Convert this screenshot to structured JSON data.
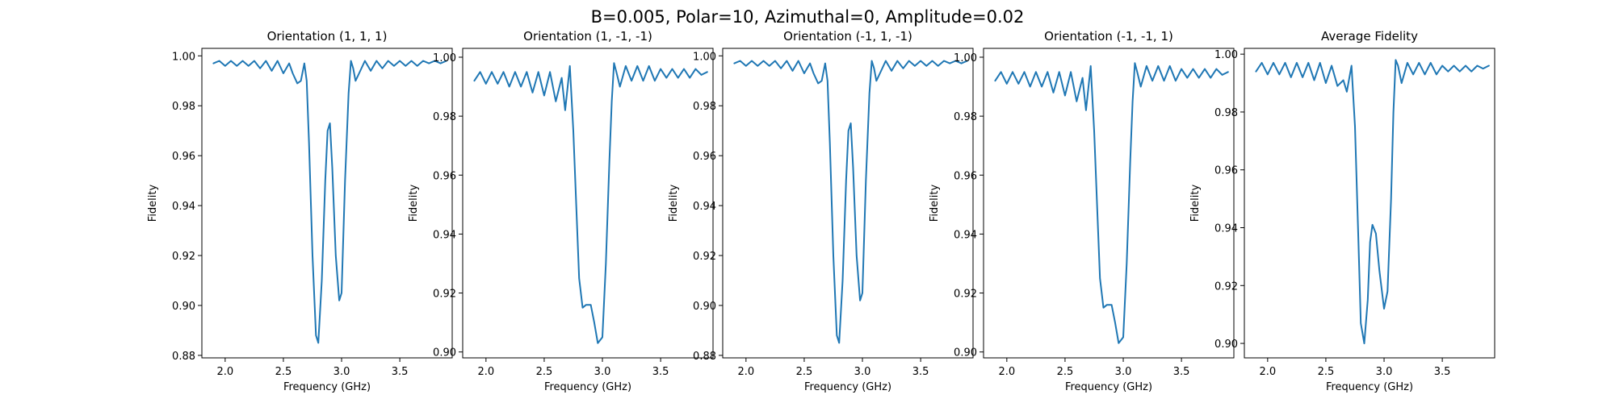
{
  "suptitle": "B=0.005, Polar=10, Azimuthal=0, Amplitude=0.02",
  "line_color": "#1f77b4",
  "chart_data": [
    {
      "type": "line",
      "title": "Orientation (1, 1, 1)",
      "xlabel": "Frequency (GHz)",
      "ylabel": "Fidelity",
      "xlim": [
        1.8,
        3.95
      ],
      "ylim": [
        0.879,
        1.003
      ],
      "xticks": [
        2.0,
        2.5,
        3.0,
        3.5
      ],
      "xtick_labels": [
        "2.0",
        "2.5",
        "3.0",
        "3.5"
      ],
      "yticks": [
        0.88,
        0.9,
        0.92,
        0.94,
        0.96,
        0.98,
        1.0
      ],
      "ytick_labels": [
        "0.88",
        "0.90",
        "0.92",
        "0.94",
        "0.96",
        "0.98",
        "1.00"
      ],
      "grid": false,
      "series": [
        {
          "x": [
            1.9,
            1.95,
            2.0,
            2.05,
            2.1,
            2.15,
            2.2,
            2.25,
            2.3,
            2.35,
            2.4,
            2.45,
            2.5,
            2.55,
            2.58,
            2.62,
            2.65,
            2.68,
            2.7,
            2.72,
            2.75,
            2.78,
            2.8,
            2.83,
            2.86,
            2.88,
            2.9,
            2.92,
            2.95,
            2.98,
            3.0,
            3.03,
            3.06,
            3.08,
            3.1,
            3.12,
            3.15,
            3.2,
            3.25,
            3.3,
            3.35,
            3.4,
            3.45,
            3.5,
            3.55,
            3.6,
            3.65,
            3.7,
            3.75,
            3.8,
            3.85,
            3.9
          ],
          "y": [
            0.997,
            0.998,
            0.996,
            0.998,
            0.996,
            0.998,
            0.996,
            0.998,
            0.995,
            0.998,
            0.994,
            0.998,
            0.993,
            0.997,
            0.993,
            0.989,
            0.99,
            0.997,
            0.99,
            0.965,
            0.92,
            0.888,
            0.885,
            0.91,
            0.95,
            0.97,
            0.973,
            0.955,
            0.92,
            0.902,
            0.905,
            0.95,
            0.985,
            0.998,
            0.995,
            0.99,
            0.993,
            0.998,
            0.994,
            0.998,
            0.995,
            0.998,
            0.996,
            0.998,
            0.996,
            0.998,
            0.996,
            0.998,
            0.997,
            0.998,
            0.997,
            0.998
          ]
        }
      ]
    },
    {
      "type": "line",
      "title": "Orientation (1, -1, -1)",
      "xlabel": "Frequency (GHz)",
      "ylabel": "Fidelity",
      "xlim": [
        1.8,
        3.95
      ],
      "ylim": [
        0.898,
        1.003
      ],
      "xticks": [
        2.0,
        2.5,
        3.0,
        3.5
      ],
      "xtick_labels": [
        "2.0",
        "2.5",
        "3.0",
        "3.5"
      ],
      "yticks": [
        0.9,
        0.92,
        0.94,
        0.96,
        0.98,
        1.0
      ],
      "ytick_labels": [
        "0.90",
        "0.92",
        "0.94",
        "0.96",
        "0.98",
        "1.00"
      ],
      "grid": false,
      "series": [
        {
          "x": [
            1.9,
            1.95,
            2.0,
            2.05,
            2.1,
            2.15,
            2.2,
            2.25,
            2.3,
            2.35,
            2.4,
            2.45,
            2.5,
            2.55,
            2.6,
            2.65,
            2.68,
            2.72,
            2.75,
            2.78,
            2.8,
            2.83,
            2.86,
            2.9,
            2.93,
            2.96,
            3.0,
            3.03,
            3.06,
            3.08,
            3.1,
            3.12,
            3.15,
            3.2,
            3.25,
            3.3,
            3.35,
            3.4,
            3.45,
            3.5,
            3.55,
            3.6,
            3.65,
            3.7,
            3.75,
            3.8,
            3.85,
            3.9
          ],
          "y": [
            0.992,
            0.995,
            0.991,
            0.995,
            0.991,
            0.995,
            0.99,
            0.995,
            0.99,
            0.995,
            0.988,
            0.995,
            0.987,
            0.995,
            0.985,
            0.993,
            0.982,
            0.997,
            0.975,
            0.945,
            0.925,
            0.915,
            0.916,
            0.916,
            0.91,
            0.903,
            0.905,
            0.93,
            0.965,
            0.985,
            0.998,
            0.995,
            0.99,
            0.997,
            0.992,
            0.997,
            0.992,
            0.997,
            0.992,
            0.996,
            0.993,
            0.996,
            0.993,
            0.996,
            0.993,
            0.996,
            0.994,
            0.995
          ]
        }
      ]
    },
    {
      "type": "line",
      "title": "Orientation (-1, 1, -1)",
      "xlabel": "Frequency (GHz)",
      "ylabel": "Fidelity",
      "xlim": [
        1.8,
        3.95
      ],
      "ylim": [
        0.879,
        1.003
      ],
      "xticks": [
        2.0,
        2.5,
        3.0,
        3.5
      ],
      "xtick_labels": [
        "2.0",
        "2.5",
        "3.0",
        "3.5"
      ],
      "yticks": [
        0.88,
        0.9,
        0.92,
        0.94,
        0.96,
        0.98,
        1.0
      ],
      "ytick_labels": [
        "0.88",
        "0.90",
        "0.92",
        "0.94",
        "0.96",
        "0.98",
        "1.00"
      ],
      "grid": false,
      "series": [
        {
          "x": [
            1.9,
            1.95,
            2.0,
            2.05,
            2.1,
            2.15,
            2.2,
            2.25,
            2.3,
            2.35,
            2.4,
            2.45,
            2.5,
            2.55,
            2.58,
            2.62,
            2.65,
            2.68,
            2.7,
            2.72,
            2.75,
            2.78,
            2.8,
            2.83,
            2.86,
            2.88,
            2.9,
            2.92,
            2.95,
            2.98,
            3.0,
            3.03,
            3.06,
            3.08,
            3.1,
            3.12,
            3.15,
            3.2,
            3.25,
            3.3,
            3.35,
            3.4,
            3.45,
            3.5,
            3.55,
            3.6,
            3.65,
            3.7,
            3.75,
            3.8,
            3.85,
            3.9
          ],
          "y": [
            0.997,
            0.998,
            0.996,
            0.998,
            0.996,
            0.998,
            0.996,
            0.998,
            0.995,
            0.998,
            0.994,
            0.998,
            0.993,
            0.997,
            0.993,
            0.989,
            0.99,
            0.997,
            0.99,
            0.965,
            0.92,
            0.888,
            0.885,
            0.91,
            0.95,
            0.97,
            0.973,
            0.955,
            0.92,
            0.902,
            0.905,
            0.95,
            0.985,
            0.998,
            0.995,
            0.99,
            0.993,
            0.998,
            0.994,
            0.998,
            0.995,
            0.998,
            0.996,
            0.998,
            0.996,
            0.998,
            0.996,
            0.998,
            0.997,
            0.998,
            0.997,
            0.998
          ]
        }
      ]
    },
    {
      "type": "line",
      "title": "Orientation (-1, -1, 1)",
      "xlabel": "Frequency (GHz)",
      "ylabel": "Fidelity",
      "xlim": [
        1.8,
        3.95
      ],
      "ylim": [
        0.898,
        1.003
      ],
      "xticks": [
        2.0,
        2.5,
        3.0,
        3.5
      ],
      "xtick_labels": [
        "2.0",
        "2.5",
        "3.0",
        "3.5"
      ],
      "yticks": [
        0.9,
        0.92,
        0.94,
        0.96,
        0.98,
        1.0
      ],
      "ytick_labels": [
        "0.90",
        "0.92",
        "0.94",
        "0.96",
        "0.98",
        "1.00"
      ],
      "grid": false,
      "series": [
        {
          "x": [
            1.9,
            1.95,
            2.0,
            2.05,
            2.1,
            2.15,
            2.2,
            2.25,
            2.3,
            2.35,
            2.4,
            2.45,
            2.5,
            2.55,
            2.6,
            2.65,
            2.68,
            2.72,
            2.75,
            2.78,
            2.8,
            2.83,
            2.86,
            2.9,
            2.93,
            2.96,
            3.0,
            3.03,
            3.06,
            3.08,
            3.1,
            3.12,
            3.15,
            3.2,
            3.25,
            3.3,
            3.35,
            3.4,
            3.45,
            3.5,
            3.55,
            3.6,
            3.65,
            3.7,
            3.75,
            3.8,
            3.85,
            3.9
          ],
          "y": [
            0.992,
            0.995,
            0.991,
            0.995,
            0.991,
            0.995,
            0.99,
            0.995,
            0.99,
            0.995,
            0.988,
            0.995,
            0.987,
            0.995,
            0.985,
            0.993,
            0.982,
            0.997,
            0.975,
            0.945,
            0.925,
            0.915,
            0.916,
            0.916,
            0.91,
            0.903,
            0.905,
            0.93,
            0.965,
            0.985,
            0.998,
            0.995,
            0.99,
            0.997,
            0.992,
            0.997,
            0.992,
            0.997,
            0.992,
            0.996,
            0.993,
            0.996,
            0.993,
            0.996,
            0.993,
            0.996,
            0.994,
            0.995
          ]
        }
      ]
    },
    {
      "type": "line",
      "title": "Average Fidelity",
      "xlabel": "Frequency (GHz)",
      "ylabel": "Fidelity",
      "xlim": [
        1.8,
        3.95
      ],
      "ylim": [
        0.895,
        1.002
      ],
      "xticks": [
        2.0,
        2.5,
        3.0,
        3.5
      ],
      "xtick_labels": [
        "2.0",
        "2.5",
        "3.0",
        "3.5"
      ],
      "yticks": [
        0.9,
        0.92,
        0.94,
        0.96,
        0.98,
        1.0
      ],
      "ytick_labels": [
        "0.90",
        "0.92",
        "0.94",
        "0.96",
        "0.98",
        "1.00"
      ],
      "grid": false,
      "series": [
        {
          "x": [
            1.9,
            1.95,
            2.0,
            2.05,
            2.1,
            2.15,
            2.2,
            2.25,
            2.3,
            2.35,
            2.4,
            2.45,
            2.5,
            2.55,
            2.6,
            2.65,
            2.68,
            2.72,
            2.75,
            2.78,
            2.8,
            2.83,
            2.86,
            2.88,
            2.9,
            2.93,
            2.96,
            3.0,
            3.03,
            3.06,
            3.08,
            3.1,
            3.12,
            3.15,
            3.2,
            3.25,
            3.3,
            3.35,
            3.4,
            3.45,
            3.5,
            3.55,
            3.6,
            3.65,
            3.7,
            3.75,
            3.8,
            3.85,
            3.9
          ],
          "y": [
            0.994,
            0.997,
            0.993,
            0.997,
            0.993,
            0.997,
            0.992,
            0.997,
            0.992,
            0.997,
            0.991,
            0.997,
            0.99,
            0.996,
            0.989,
            0.991,
            0.987,
            0.996,
            0.975,
            0.935,
            0.907,
            0.9,
            0.915,
            0.935,
            0.941,
            0.938,
            0.925,
            0.912,
            0.918,
            0.95,
            0.98,
            0.998,
            0.996,
            0.99,
            0.997,
            0.993,
            0.997,
            0.993,
            0.997,
            0.993,
            0.996,
            0.994,
            0.996,
            0.994,
            0.996,
            0.994,
            0.996,
            0.995,
            0.996
          ]
        }
      ]
    }
  ]
}
